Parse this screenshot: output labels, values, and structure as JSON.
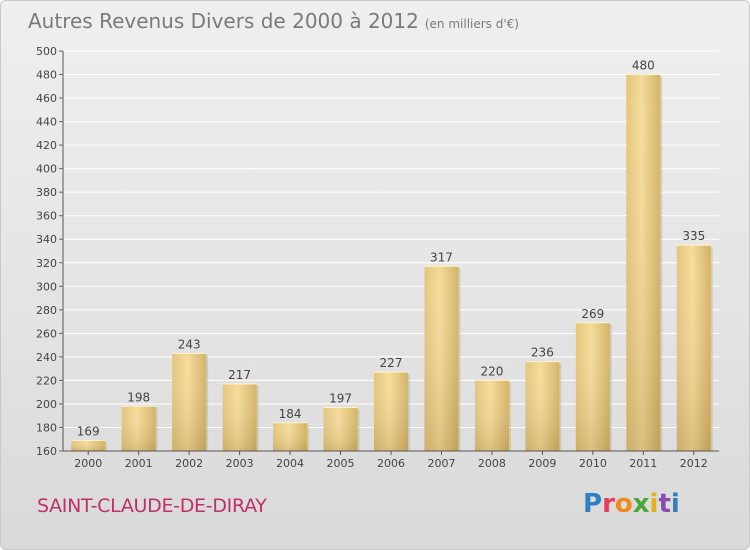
{
  "header": {
    "title": "Autres Revenus Divers de 2000 à 2012",
    "unit": "(en milliers d'€)"
  },
  "footer": {
    "town": "SAINT-CLAUDE-DE-DIRAY",
    "logo": [
      "P",
      "r",
      "o",
      "x",
      "i",
      "t",
      "i"
    ]
  },
  "colors": {
    "bar_light": "#f5dc9a",
    "bar_dark": "#c8a75a",
    "town": "#c0306a",
    "title": "#7a7a7a"
  },
  "chart_data": {
    "type": "bar",
    "title": "Autres Revenus Divers de 2000 à 2012",
    "xlabel": "",
    "ylabel": "",
    "categories": [
      "2000",
      "2001",
      "2002",
      "2003",
      "2004",
      "2005",
      "2006",
      "2007",
      "2008",
      "2009",
      "2010",
      "2011",
      "2012"
    ],
    "values": [
      169,
      198,
      243,
      217,
      184,
      197,
      227,
      317,
      220,
      236,
      269,
      480,
      335
    ],
    "ylim": [
      160,
      500
    ],
    "yticks": [
      160,
      180,
      200,
      220,
      240,
      260,
      280,
      300,
      320,
      340,
      360,
      380,
      400,
      420,
      440,
      460,
      480,
      500
    ],
    "grid": true,
    "legend": "none"
  }
}
